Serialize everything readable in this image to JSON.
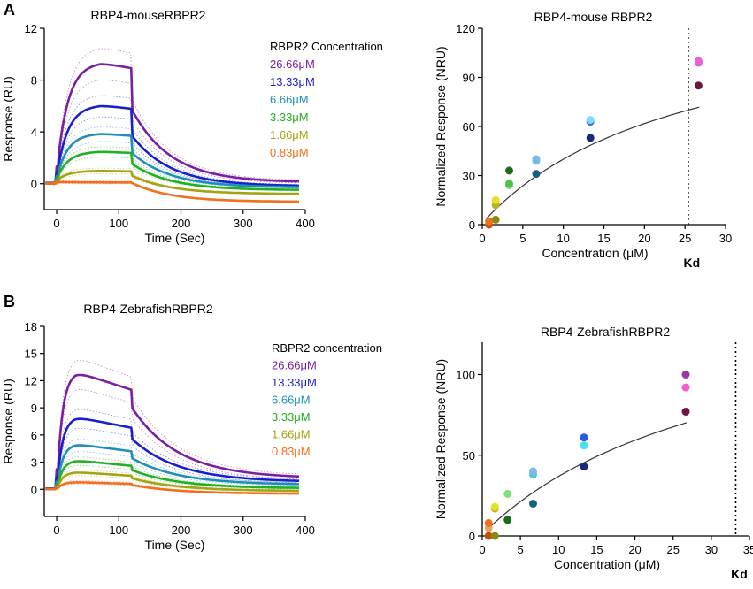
{
  "figure": {
    "panel_labels": [
      "A",
      "B"
    ]
  },
  "chart_data": [
    {
      "id": "A_sensorgram",
      "type": "line",
      "title": "RBP4-mouseRBPR2",
      "xlabel": "Time (Sec)",
      "ylabel": "Response (RU)",
      "xlim": [
        -20,
        400
      ],
      "ylim": [
        -2,
        12
      ],
      "xticks": [
        0,
        100,
        200,
        300,
        400
      ],
      "yticks": [
        0,
        4,
        8,
        12
      ],
      "legend_title": "RBPR2 Concentration",
      "injection_end": 120,
      "series": [
        {
          "name": "26.66μM",
          "color": "#7a1fa2",
          "plateau": 9.4,
          "end": 0.1,
          "early": 0.9
        },
        {
          "name": "13.33μM",
          "color": "#1a1fcc",
          "plateau": 6.1,
          "end": -0.2,
          "early": 0.6
        },
        {
          "name": "6.66μM",
          "color": "#1f8fb5",
          "plateau": 3.9,
          "end": -0.3,
          "early": 0.45
        },
        {
          "name": "3.33μM",
          "color": "#22b022",
          "plateau": 2.5,
          "end": -0.5,
          "early": 0.35
        },
        {
          "name": "1.66μM",
          "color": "#a3a314",
          "plateau": 1.0,
          "end": -0.8,
          "early": 0.25
        },
        {
          "name": "0.83μM",
          "color": "#f07020",
          "plateau": 0.1,
          "end": -1.4,
          "early": 0.15
        }
      ]
    },
    {
      "id": "A_fit",
      "type": "scatter",
      "title": "RBP4-mouse RBPR2",
      "xlabel": "Concentration (μM)",
      "ylabel": "Normalized Response (NRU)",
      "xlim": [
        0,
        30
      ],
      "ylim": [
        0,
        120
      ],
      "xticks": [
        0,
        5,
        10,
        15,
        20,
        25,
        30
      ],
      "yticks": [
        0,
        30,
        60,
        90,
        120
      ],
      "kd_label": "Kd",
      "kd": 25.4,
      "fit_bmax": 138,
      "points": [
        {
          "x": 0.83,
          "y": 0,
          "color": "#c05010"
        },
        {
          "x": 0.83,
          "y": 2,
          "color": "#f07020"
        },
        {
          "x": 1.66,
          "y": 3,
          "color": "#8a8a10"
        },
        {
          "x": 1.66,
          "y": 12,
          "color": "#b5b520"
        },
        {
          "x": 1.66,
          "y": 15,
          "color": "#e8e020"
        },
        {
          "x": 3.33,
          "y": 24,
          "color": "#7fe07f"
        },
        {
          "x": 3.33,
          "y": 25,
          "color": "#4cc04c"
        },
        {
          "x": 3.33,
          "y": 33,
          "color": "#1c6a1c"
        },
        {
          "x": 6.66,
          "y": 31,
          "color": "#15607a"
        },
        {
          "x": 6.66,
          "y": 39,
          "color": "#46c8e0"
        },
        {
          "x": 6.66,
          "y": 40,
          "color": "#7fb8e8"
        },
        {
          "x": 13.33,
          "y": 53,
          "color": "#182a78"
        },
        {
          "x": 13.33,
          "y": 63,
          "color": "#2a5ae8"
        },
        {
          "x": 13.33,
          "y": 64,
          "color": "#7fd8ff"
        },
        {
          "x": 26.66,
          "y": 85,
          "color": "#6a1840"
        },
        {
          "x": 26.66,
          "y": 99,
          "color": "#b460e0"
        },
        {
          "x": 26.66,
          "y": 100,
          "color": "#f060d0"
        }
      ]
    },
    {
      "id": "B_sensorgram",
      "type": "line",
      "title": "RBP4-ZebrafishRBPR2",
      "xlabel": "Time (Sec)",
      "ylabel": "Response (RU)",
      "xlim": [
        -20,
        400
      ],
      "ylim": [
        -3,
        18
      ],
      "xticks": [
        0,
        100,
        200,
        300,
        400
      ],
      "yticks": [
        0,
        3,
        6,
        9,
        12,
        15,
        18
      ],
      "legend_title": "RBPR2 concentration",
      "injection_end": 120,
      "series": [
        {
          "name": "26.66μM",
          "color": "#7a1fa2",
          "plateau": 13.0,
          "plateau_end": 11.0,
          "end": 1.2
        },
        {
          "name": "13.33μM",
          "color": "#1a1fcc",
          "plateau": 8.0,
          "plateau_end": 6.8,
          "end": 0.8
        },
        {
          "name": "6.66μM",
          "color": "#1f8fb5",
          "plateau": 5.0,
          "plateau_end": 4.2,
          "end": 0.5
        },
        {
          "name": "3.33μM",
          "color": "#22b022",
          "plateau": 3.2,
          "plateau_end": 2.6,
          "end": 0.1
        },
        {
          "name": "1.66μM",
          "color": "#a3a314",
          "plateau": 1.9,
          "plateau_end": 1.5,
          "end": -0.2
        },
        {
          "name": "0.83μM",
          "color": "#f07020",
          "plateau": 0.8,
          "plateau_end": 0.6,
          "end": -0.5
        }
      ]
    },
    {
      "id": "B_fit",
      "type": "scatter",
      "title": "RBP4-ZebrafishRBPR2",
      "xlabel": "Concentration (μM)",
      "ylabel": "Normalized Response (NRU)",
      "xlim": [
        0,
        35
      ],
      "ylim": [
        0,
        120
      ],
      "xticks": [
        0,
        5,
        10,
        15,
        20,
        25,
        30,
        35
      ],
      "yticks": [
        0,
        50,
        100
      ],
      "kd_label": "Kd",
      "kd": 33.2,
      "fit_bmax": 155,
      "points": [
        {
          "x": 0.83,
          "y": 0,
          "color": "#c05010"
        },
        {
          "x": 0.83,
          "y": 5,
          "color": "#f0a060"
        },
        {
          "x": 0.83,
          "y": 8,
          "color": "#f07020"
        },
        {
          "x": 1.66,
          "y": 0,
          "color": "#8a8a10"
        },
        {
          "x": 1.66,
          "y": 17,
          "color": "#b5b520"
        },
        {
          "x": 1.66,
          "y": 18,
          "color": "#e8e020"
        },
        {
          "x": 3.33,
          "y": 10,
          "color": "#1c6a1c"
        },
        {
          "x": 3.33,
          "y": 26,
          "color": "#7fe07f"
        },
        {
          "x": 6.66,
          "y": 20,
          "color": "#15607a"
        },
        {
          "x": 6.66,
          "y": 38,
          "color": "#46c8e0"
        },
        {
          "x": 6.66,
          "y": 40,
          "color": "#7fb8e8"
        },
        {
          "x": 13.33,
          "y": 43,
          "color": "#182a78"
        },
        {
          "x": 13.33,
          "y": 56,
          "color": "#46e0f0"
        },
        {
          "x": 13.33,
          "y": 61,
          "color": "#2a5ae8"
        },
        {
          "x": 26.66,
          "y": 77,
          "color": "#6a1840"
        },
        {
          "x": 26.66,
          "y": 92,
          "color": "#f060d0"
        },
        {
          "x": 26.66,
          "y": 100,
          "color": "#9a3aa0"
        }
      ]
    }
  ]
}
